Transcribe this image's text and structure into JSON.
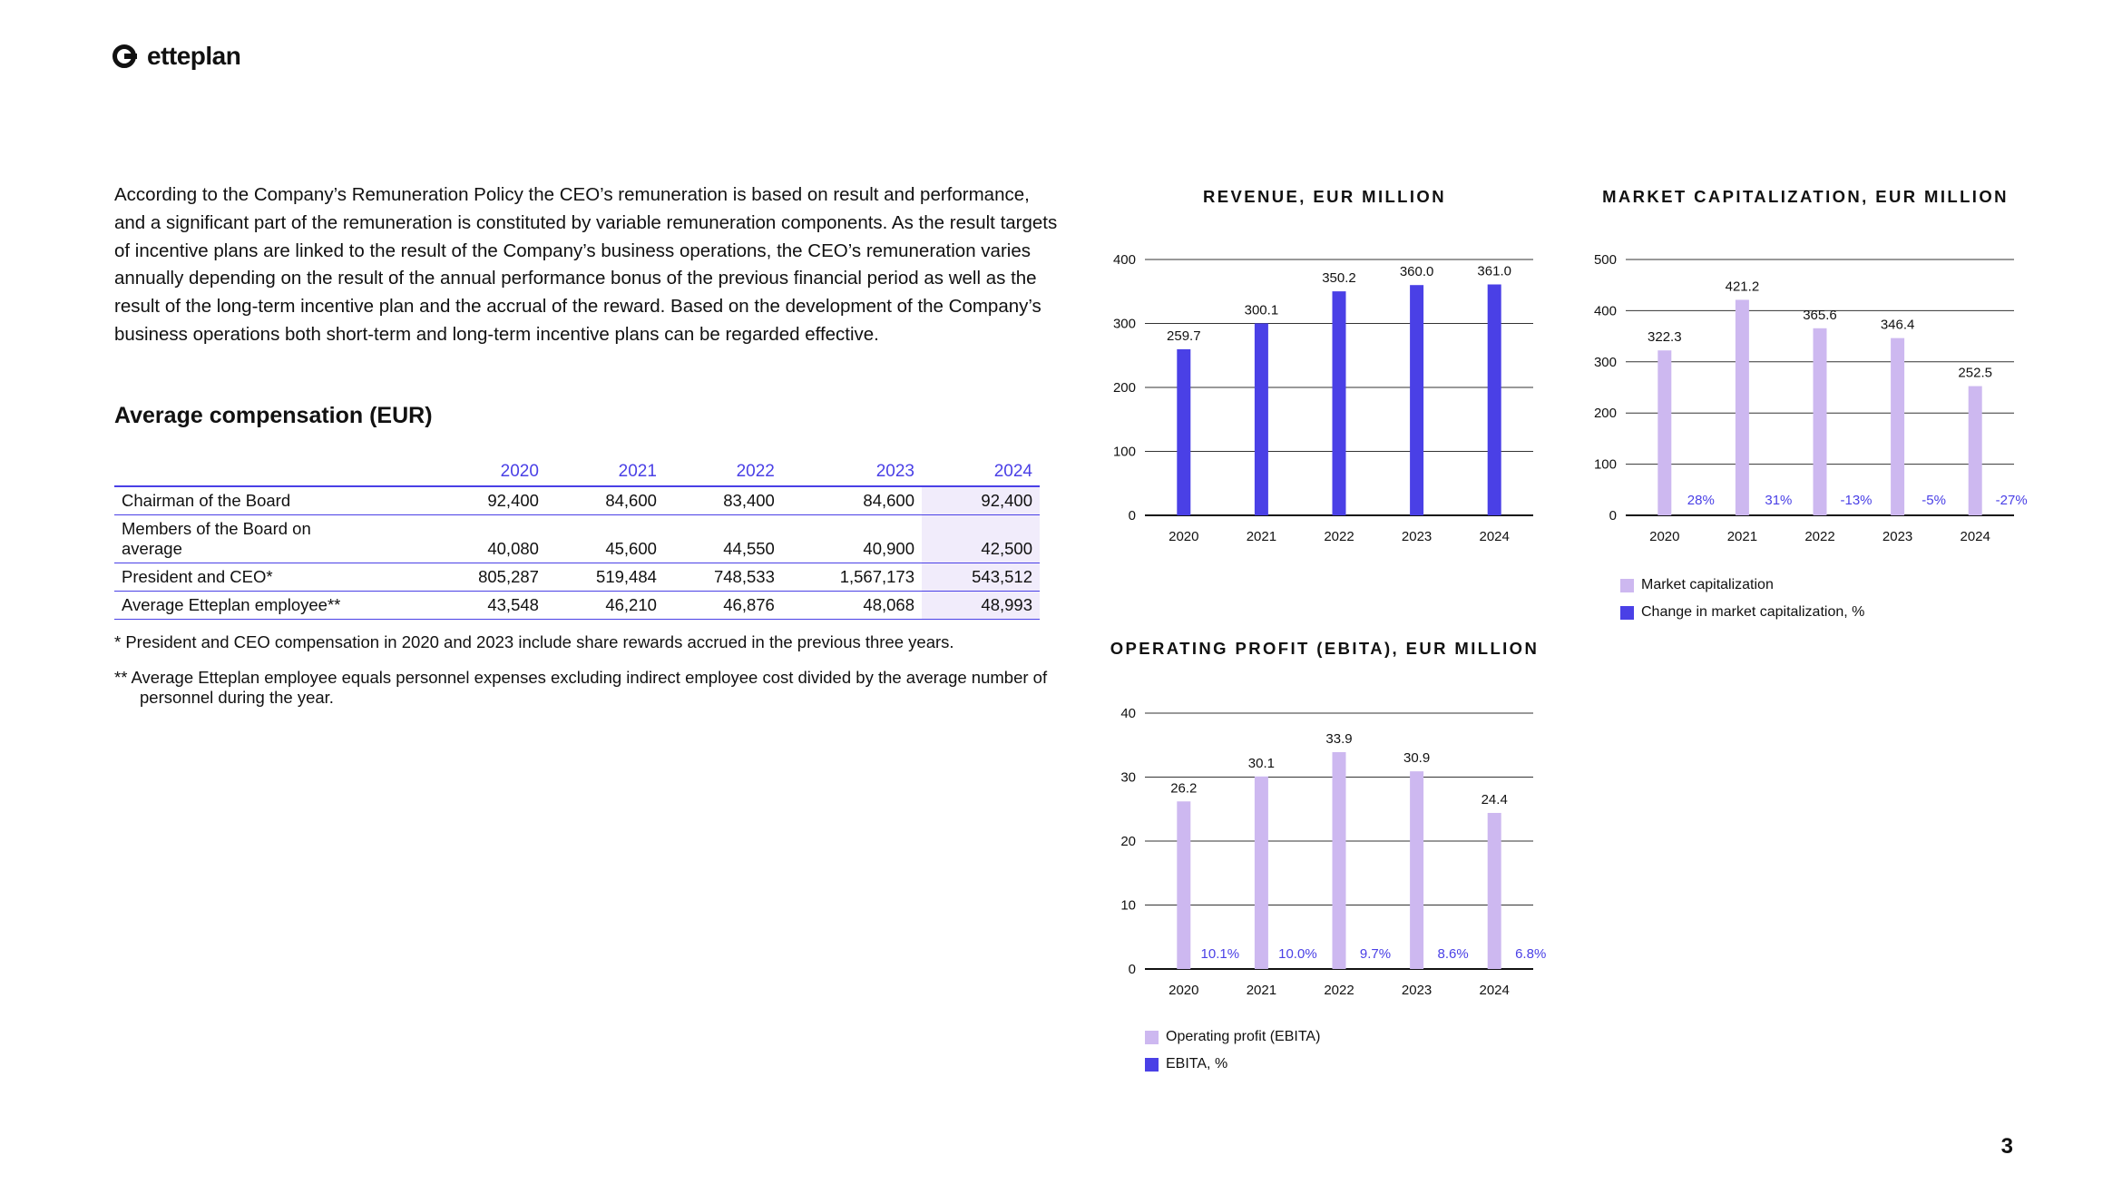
{
  "brand": {
    "name": "etteplan"
  },
  "intro": "According to the Company’s Remuneration Policy the CEO’s remuneration is based on result and performance, and a significant part of the remuneration is constituted by variable remuneration components. As the result targets of incentive plans are linked to the result of the Company’s business operations, the CEO’s remuneration varies annually depending on the result of the annual performance bonus of the previous financial period as well as the result of the long-term incentive plan and the accrual of the reward. Based on the development of the Company’s business operations both short-term and long-term incentive plans can be regarded effective.",
  "section_title": "Average compensation (EUR)",
  "table": {
    "years": [
      "2020",
      "2021",
      "2022",
      "2023",
      "2024"
    ],
    "rows": [
      {
        "label": "Chairman of the Board",
        "values": [
          "92,400",
          "84,600",
          "83,400",
          "84,600",
          "92,400"
        ]
      },
      {
        "label": "Members of the Board on average",
        "values": [
          "40,080",
          "45,600",
          "44,550",
          "40,900",
          "42,500"
        ]
      },
      {
        "label": "President and CEO*",
        "values": [
          "805,287",
          "519,484",
          "748,533",
          "1,567,173",
          "543,512"
        ]
      },
      {
        "label": "Average Etteplan employee**",
        "values": [
          "43,548",
          "46,210",
          "46,876",
          "48,068",
          "48,993"
        ]
      }
    ]
  },
  "footnotes": [
    {
      "mark": "*",
      "text": "President and CEO compensation in 2020 and 2023 include share rewards accrued in the previous three years."
    },
    {
      "mark": "**",
      "text": "Average Etteplan employee equals personnel expenses excluding indirect employee cost divided by the average number of personnel during the year."
    }
  ],
  "chart_data": [
    {
      "type": "bar",
      "title": "REVENUE, EUR MILLION",
      "categories": [
        "2020",
        "2021",
        "2022",
        "2023",
        "2024"
      ],
      "values": [
        259.7,
        300.1,
        350.2,
        360.0,
        361.0
      ],
      "labels": [
        "259.7",
        "300.1",
        "350.2",
        "360.0",
        "361.0"
      ],
      "ylim": [
        0,
        400
      ],
      "yticks": [
        0,
        100,
        200,
        300,
        400
      ],
      "grid": true,
      "color": "#4a40e6"
    },
    {
      "type": "bar",
      "title": "MARKET CAPITALIZATION, EUR MILLION",
      "categories": [
        "2020",
        "2021",
        "2022",
        "2023",
        "2024"
      ],
      "series": [
        {
          "name": "Market capitalization",
          "values": [
            322.3,
            421.2,
            365.6,
            346.4,
            252.5
          ],
          "labels": [
            "322.3",
            "421.2",
            "365.6",
            "346.4",
            "252.5"
          ],
          "color": "#cdb8f0"
        },
        {
          "name": "Change in market capitalization, %",
          "values": [
            28,
            31,
            -13,
            -5,
            -27
          ],
          "labels": [
            "28%",
            "31%",
            "-13%",
            "-5%",
            "-27%"
          ],
          "color": "#4a40e6"
        }
      ],
      "ylim": [
        0,
        500
      ],
      "yticks": [
        0,
        100,
        200,
        300,
        400,
        500
      ],
      "grid": true,
      "legend": "bottom-left"
    },
    {
      "type": "bar",
      "title": "OPERATING PROFIT (EBITA), EUR MILLION",
      "categories": [
        "2020",
        "2021",
        "2022",
        "2023",
        "2024"
      ],
      "series": [
        {
          "name": "Operating profit (EBITA)",
          "values": [
            26.2,
            30.1,
            33.9,
            30.9,
            24.4
          ],
          "labels": [
            "26.2",
            "30.1",
            "33.9",
            "30.9",
            "24.4"
          ],
          "color": "#cdb8f0"
        },
        {
          "name": "EBITA, %",
          "values": [
            10.1,
            10.0,
            9.7,
            8.6,
            6.8
          ],
          "labels": [
            "10.1%",
            "10.0%",
            "9.7%",
            "8.6%",
            "6.8%"
          ],
          "color": "#4a40e6"
        }
      ],
      "ylim": [
        0,
        40
      ],
      "yticks": [
        0,
        10,
        20,
        30,
        40
      ],
      "grid": true,
      "legend": "bottom-left"
    }
  ],
  "page_number": "3",
  "colors": {
    "accent": "#4a40e6",
    "light": "#cdb8f0",
    "highlight": "#f1ecfb"
  }
}
